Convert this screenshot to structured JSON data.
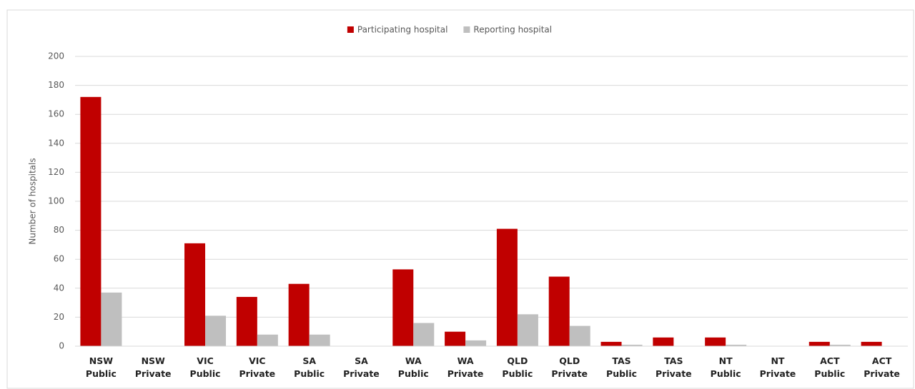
{
  "chart_data": {
    "type": "bar",
    "ylabel": "Number of hospitals",
    "categories": [
      "NSW Public",
      "NSW Private",
      "VIC Public",
      "VIC Private",
      "SA Public",
      "SA Private",
      "WA Public",
      "WA Private",
      "QLD Public",
      "QLD Private",
      "TAS Public",
      "TAS Private",
      "NT Public",
      "NT Private",
      "ACT Public",
      "ACT Private"
    ],
    "series": [
      {
        "name": "Participating hospital",
        "color": "#c00000",
        "values": [
          172,
          0,
          71,
          34,
          43,
          0,
          53,
          10,
          81,
          48,
          3,
          6,
          6,
          0,
          3,
          3
        ]
      },
      {
        "name": "Reporting hospital",
        "color": "#bfbfbf",
        "values": [
          37,
          0,
          21,
          8,
          8,
          0,
          16,
          4,
          22,
          14,
          1,
          0,
          1,
          0,
          1,
          0
        ]
      }
    ],
    "ylim": [
      0,
      200
    ],
    "yticks": [
      0,
      20,
      40,
      60,
      80,
      100,
      120,
      140,
      160,
      180,
      200
    ],
    "grid": true,
    "legend": "top"
  }
}
